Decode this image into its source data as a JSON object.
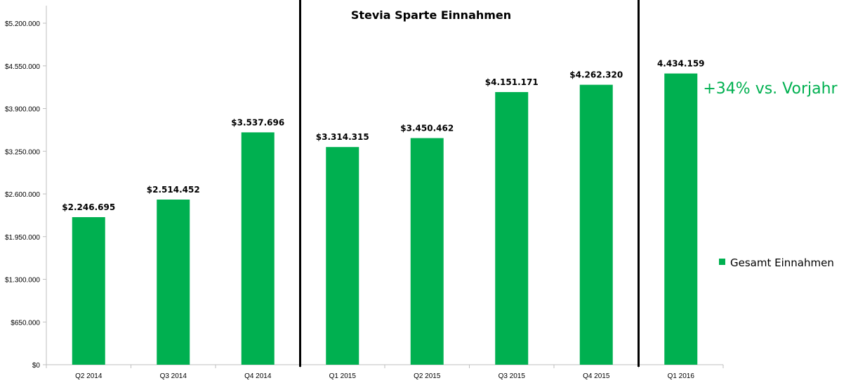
{
  "chart_data": {
    "type": "bar",
    "title": "Stevia Sparte Einnahmen",
    "categories": [
      "Q2 2014",
      "Q3 2014",
      "Q4 2014",
      "Q1 2015",
      "Q2 2015",
      "Q3 2015",
      "Q4 2015",
      "Q1 2016"
    ],
    "series": [
      {
        "name": "Gesamt Einnahmen",
        "values": [
          2246695,
          2514452,
          3537696,
          3314315,
          3450462,
          4151171,
          4262320,
          4434159
        ],
        "data_labels": [
          "$2.246.695",
          "$2.514.452",
          "$3.537.696",
          "$3.314.315",
          "$3.450.462",
          "$4.151.171",
          "$4.262.320",
          "4.434.159"
        ]
      }
    ],
    "ylim": [
      0,
      5200000
    ],
    "yticks": [
      0,
      650000,
      1300000,
      1950000,
      2600000,
      3250000,
      3900000,
      4550000,
      5200000
    ],
    "ytick_labels": [
      "$0",
      "$650.000",
      "$1.300.000",
      "$1.950.000",
      "$2.600.000",
      "$3.250.000",
      "$3.900.000",
      "$4.550.000",
      "$5.200.000"
    ],
    "xlabel": "",
    "ylabel": "",
    "grid": false,
    "legend_position": "right",
    "annotation": "+34% vs. Vorjahr",
    "separators_between_categories": [
      2,
      6
    ]
  },
  "colors": {
    "bar": "#00b050",
    "annotation": "#00b050",
    "axis": "#bfbfbf",
    "separator": "#000000"
  }
}
